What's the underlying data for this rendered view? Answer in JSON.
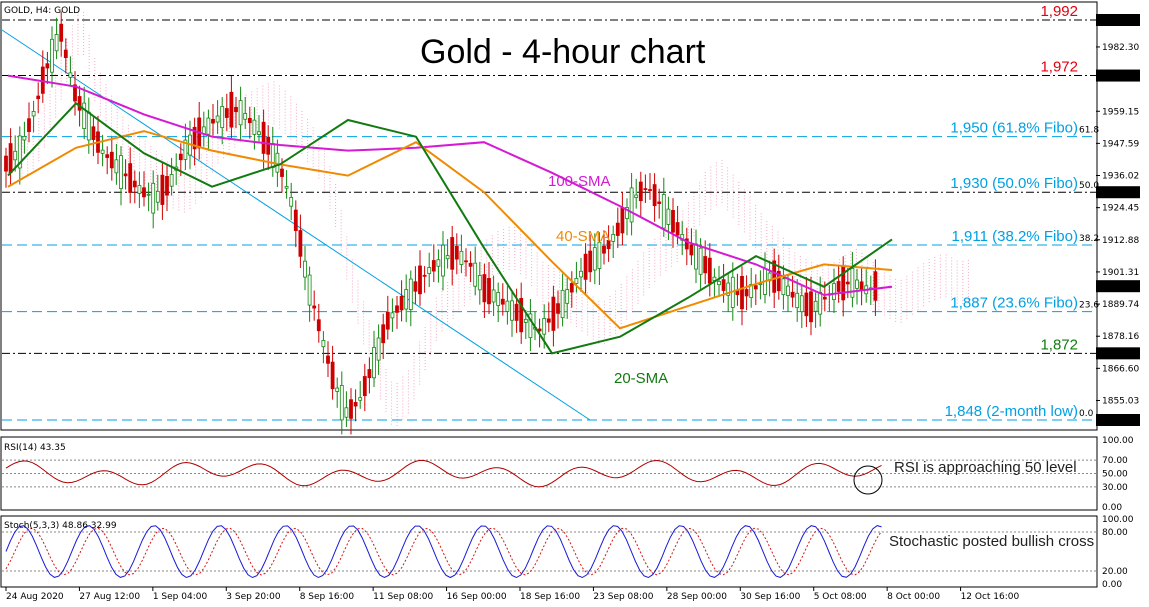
{
  "symbol_label": "GOLD, H4:  GOLD",
  "title": "Gold - 4-hour chart",
  "rsi_label": "RSI(14) 43.35",
  "stoch_label": "Stoch(5,3,3) 48.86 32.99",
  "annotations": {
    "sma100": "100-SMA",
    "sma40": "40-SMA",
    "sma20": "20-SMA",
    "rsi_note": "RSI is approaching 50 level",
    "stoch_note": "Stochastic posted bullish cross"
  },
  "colors": {
    "sma100": "#d41ad4",
    "sma40": "#f08a00",
    "sma20": "#117a11",
    "fibo": "#00a0e3",
    "red_level": "#e3000f",
    "green_level": "#107c10",
    "osc": "#b00000",
    "stoch_main": "#1a1ad8",
    "stoch_signal": "#d01a1a"
  },
  "chart_data": {
    "type": "line",
    "title": "Gold - 4-hour chart",
    "ylim": [
      1843,
      1997
    ],
    "y_ticks": [
      "1992.00",
      "1982.30",
      "1970.90",
      "1959.15",
      "1947.59",
      "1936.02",
      "1924.45",
      "1912.88",
      "1901.31",
      "1889.74",
      "1878.16",
      "1866.60",
      "1855.03",
      "1848.00"
    ],
    "x_ticks": [
      "24 Aug 2020",
      "27 Aug 12:00",
      "1 Sep 04:00",
      "3 Sep 20:00",
      "8 Sep 16:00",
      "11 Sep 08:00",
      "16 Sep 00:00",
      "18 Sep 16:00",
      "23 Sep 08:00",
      "28 Sep 00:00",
      "30 Sep 16:00",
      "5 Oct 08:00",
      "8 Oct 00:00",
      "12 Oct 16:00"
    ],
    "price_levels": [
      {
        "label": "1,992",
        "value": 1992,
        "style": "black",
        "color": "red"
      },
      {
        "label": "1,972",
        "value": 1972,
        "style": "black",
        "color": "red"
      },
      {
        "label": "1,950 (61.8% Fibo)",
        "value": 1950,
        "style": "fibo",
        "tag": "61.8"
      },
      {
        "label": "1,930 (50.0% Fibo)",
        "value": 1930,
        "style": "black",
        "tag": "50.0"
      },
      {
        "label": "1,911 (38.2% Fibo)",
        "value": 1911,
        "style": "fibo",
        "tag": "38.2"
      },
      {
        "label": "1,887 (23.6% Fibo)",
        "value": 1887,
        "style": "fibo",
        "tag": "23.6"
      },
      {
        "label": "1,872",
        "value": 1872,
        "style": "black",
        "color": "green"
      },
      {
        "label": "1,848 (2-month low)",
        "value": 1848,
        "style": "fibo",
        "tag": "0.0"
      }
    ],
    "price_boxes": [
      "1992.00",
      "1972.00",
      "1930.00",
      "1896.17",
      "1872.00",
      "1848.00"
    ],
    "series": [
      {
        "name": "100-SMA",
        "x": [
          0,
          5,
          10,
          15,
          20,
          25,
          30,
          35,
          40,
          45,
          50,
          55,
          60,
          65
        ],
        "values": [
          1972,
          1968,
          1958,
          1950,
          1947,
          1945,
          1946,
          1948,
          1937,
          1925,
          1912,
          1904,
          1893,
          1896
        ]
      },
      {
        "name": "40-SMA",
        "x": [
          0,
          5,
          10,
          15,
          20,
          25,
          30,
          35,
          40,
          45,
          50,
          55,
          60,
          65
        ],
        "values": [
          1932,
          1946,
          1952,
          1945,
          1940,
          1936,
          1948,
          1930,
          1905,
          1881,
          1889,
          1897,
          1904,
          1902
        ]
      },
      {
        "name": "20-SMA",
        "x": [
          0,
          5,
          10,
          15,
          20,
          25,
          30,
          35,
          40,
          45,
          50,
          55,
          60,
          65
        ],
        "values": [
          1936,
          1962,
          1944,
          1932,
          1940,
          1956,
          1950,
          1910,
          1872,
          1878,
          1892,
          1907,
          1896,
          1913
        ]
      }
    ],
    "rsi": {
      "levels": [
        100,
        70,
        50,
        30,
        0
      ],
      "current": 43.35
    },
    "stochastic": {
      "levels": [
        100,
        80,
        20,
        0
      ],
      "main": 48.86,
      "signal": 32.99
    }
  }
}
